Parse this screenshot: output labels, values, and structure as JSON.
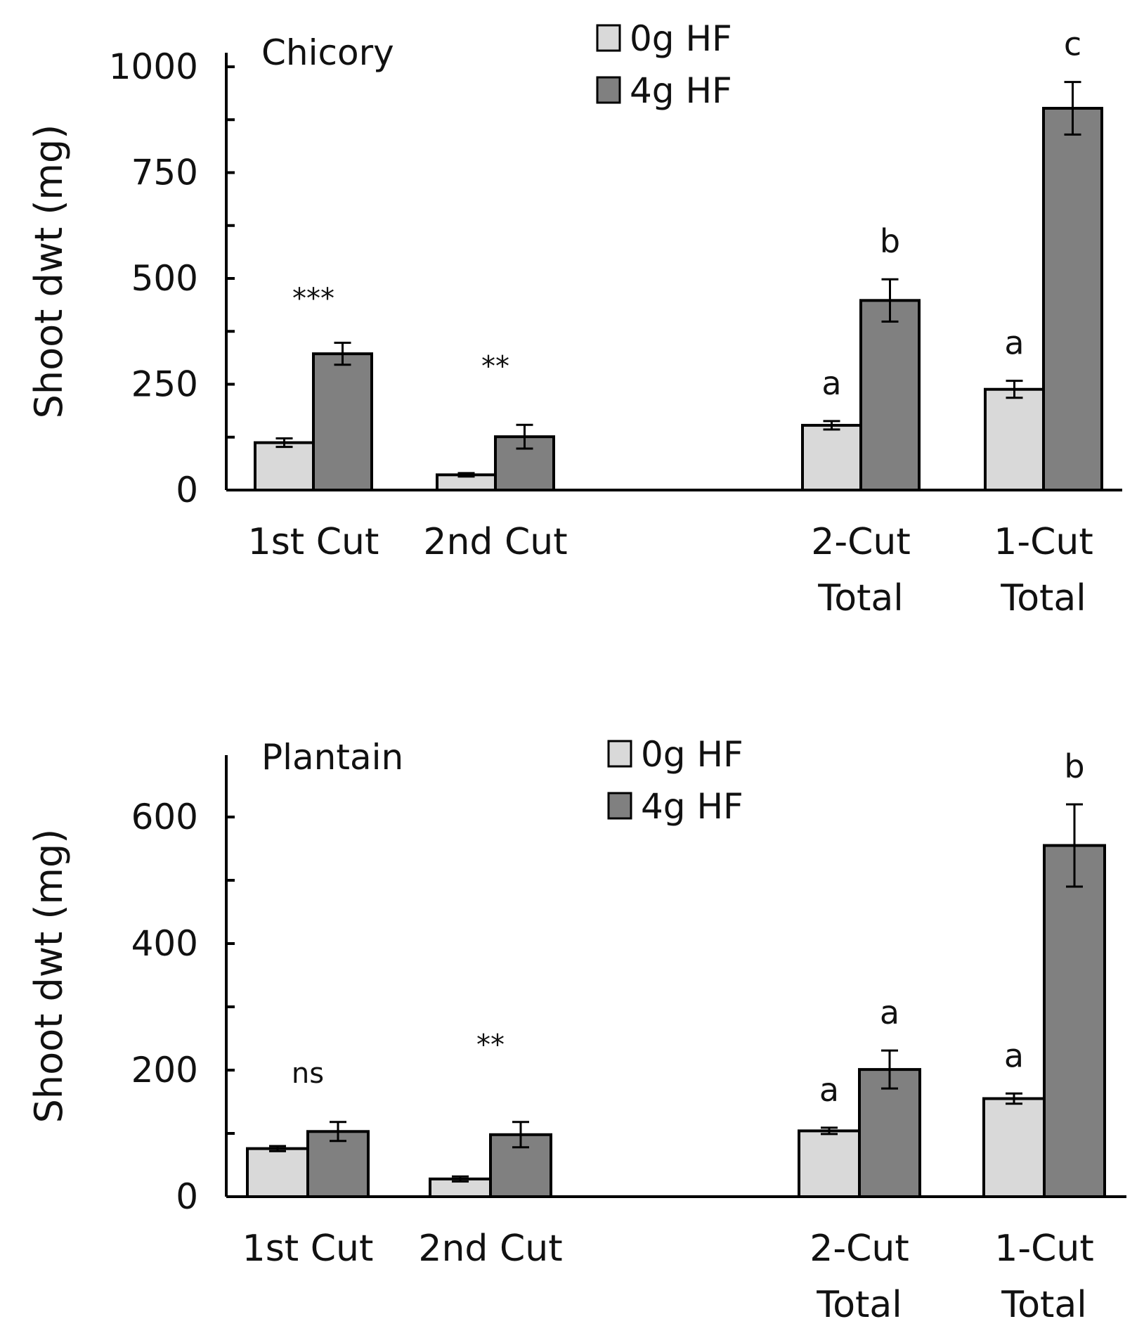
{
  "colors": {
    "light": "#d9d9d9",
    "dark": "#808080",
    "axis": "#000000"
  },
  "chart_data": [
    {
      "type": "bar",
      "title": "Chicory",
      "ylabel": "Shoot dwt (mg)",
      "xlabel": "",
      "ylim": [
        0,
        1000
      ],
      "yticks": [
        "0",
        "250",
        "500",
        "750",
        "1000"
      ],
      "legend": [
        "0g HF",
        "4g HF"
      ],
      "legend_position": "top-center",
      "categories": [
        {
          "line1": "1st Cut",
          "line2": ""
        },
        {
          "line1": "2nd Cut",
          "line2": ""
        },
        {
          "line1": "2-Cut",
          "line2": "Total"
        },
        {
          "line1": "1-Cut",
          "line2": "Total"
        }
      ],
      "series": [
        {
          "name": "0g HF",
          "values": [
            112,
            36,
            153,
            238
          ],
          "errors": [
            10,
            4,
            10,
            20
          ]
        },
        {
          "name": "4g HF",
          "values": [
            322,
            126,
            448,
            902
          ],
          "errors": [
            26,
            28,
            50,
            62
          ]
        }
      ],
      "annotations": [
        {
          "category": 0,
          "text": "***",
          "y": 430
        },
        {
          "category": 1,
          "text": "**",
          "y": 270
        }
      ],
      "letters": [
        {
          "category": 2,
          "series": 0,
          "text": "a"
        },
        {
          "category": 2,
          "series": 1,
          "text": "b"
        },
        {
          "category": 3,
          "series": 0,
          "text": "a"
        },
        {
          "category": 3,
          "series": 1,
          "text": "c"
        }
      ]
    },
    {
      "type": "bar",
      "title": "Plantain",
      "ylabel": "Shoot dwt (mg)",
      "xlabel": "",
      "ylim": [
        0,
        700
      ],
      "yticks": [
        "0",
        "200",
        "400",
        "600"
      ],
      "legend": [
        "0g HF",
        "4g HF"
      ],
      "legend_position": "top-center",
      "categories": [
        {
          "line1": "1st Cut",
          "line2": ""
        },
        {
          "line1": "2nd Cut",
          "line2": ""
        },
        {
          "line1": "2-Cut",
          "line2": "Total"
        },
        {
          "line1": "1-Cut",
          "line2": "Total"
        }
      ],
      "series": [
        {
          "name": "0g HF",
          "values": [
            76,
            28,
            104,
            155
          ],
          "errors": [
            4,
            4,
            5,
            8
          ]
        },
        {
          "name": "4g HF",
          "values": [
            103,
            98,
            201,
            555
          ],
          "errors": [
            15,
            20,
            30,
            65
          ]
        }
      ],
      "annotations": [
        {
          "category": 0,
          "text": "ns",
          "y": 180
        },
        {
          "category": 1,
          "text": "**",
          "y": 225
        }
      ],
      "letters": [
        {
          "category": 2,
          "series": 0,
          "text": "a"
        },
        {
          "category": 2,
          "series": 1,
          "text": "a"
        },
        {
          "category": 3,
          "series": 0,
          "text": "a"
        },
        {
          "category": 3,
          "series": 1,
          "text": "b"
        }
      ]
    }
  ]
}
